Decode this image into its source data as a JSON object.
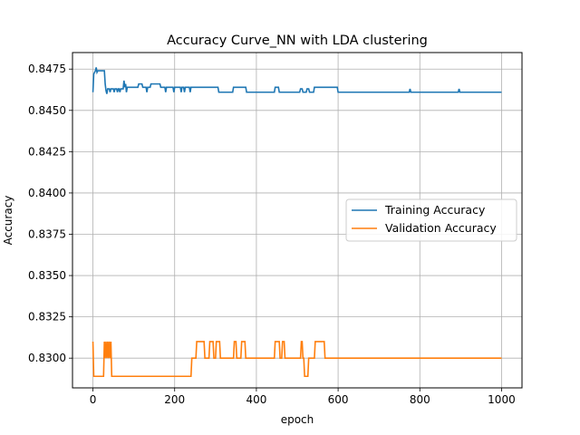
{
  "chart_data": {
    "type": "line",
    "title": "Accuracy Curve_NN with LDA clustering",
    "xlabel": "epoch",
    "ylabel": "Accuracy",
    "xlim": [
      -50,
      1050
    ],
    "ylim": [
      0.8282,
      0.8485
    ],
    "xticks": [
      0,
      200,
      400,
      600,
      800,
      1000
    ],
    "xtick_labels": [
      "0",
      "200",
      "400",
      "600",
      "800",
      "1000"
    ],
    "yticks": [
      0.83,
      0.8325,
      0.835,
      0.8375,
      0.84,
      0.8425,
      0.845,
      0.8475
    ],
    "ytick_labels": [
      "0.8300",
      "0.8325",
      "0.8350",
      "0.8375",
      "0.8400",
      "0.8425",
      "0.8450",
      "0.8475"
    ],
    "grid": true,
    "legend_position": "center-right",
    "series": [
      {
        "name": "Training Accuracy",
        "color": "#1f77b4",
        "points": [
          [
            0,
            0.8461
          ],
          [
            2,
            0.8472
          ],
          [
            6,
            0.8474
          ],
          [
            8,
            0.8476
          ],
          [
            10,
            0.8473
          ],
          [
            12,
            0.8474
          ],
          [
            28,
            0.8474
          ],
          [
            30,
            0.8466
          ],
          [
            32,
            0.8462
          ],
          [
            34,
            0.846
          ],
          [
            36,
            0.8463
          ],
          [
            40,
            0.8463
          ],
          [
            42,
            0.8461
          ],
          [
            44,
            0.8463
          ],
          [
            50,
            0.8463
          ],
          [
            52,
            0.8461
          ],
          [
            54,
            0.8463
          ],
          [
            58,
            0.8463
          ],
          [
            60,
            0.8461
          ],
          [
            62,
            0.8463
          ],
          [
            64,
            0.8463
          ],
          [
            66,
            0.8461
          ],
          [
            68,
            0.8463
          ],
          [
            74,
            0.8463
          ],
          [
            76,
            0.8468
          ],
          [
            78,
            0.8464
          ],
          [
            80,
            0.8466
          ],
          [
            82,
            0.8461
          ],
          [
            84,
            0.8464
          ],
          [
            110,
            0.8464
          ],
          [
            112,
            0.8466
          ],
          [
            120,
            0.8466
          ],
          [
            122,
            0.8464
          ],
          [
            130,
            0.8464
          ],
          [
            132,
            0.8461
          ],
          [
            134,
            0.8464
          ],
          [
            140,
            0.8464
          ],
          [
            142,
            0.8466
          ],
          [
            164,
            0.8466
          ],
          [
            166,
            0.8464
          ],
          [
            176,
            0.8464
          ],
          [
            178,
            0.8461
          ],
          [
            180,
            0.8464
          ],
          [
            196,
            0.8464
          ],
          [
            198,
            0.8461
          ],
          [
            200,
            0.8464
          ],
          [
            214,
            0.8464
          ],
          [
            216,
            0.8461
          ],
          [
            218,
            0.8464
          ],
          [
            222,
            0.8464
          ],
          [
            224,
            0.8461
          ],
          [
            226,
            0.8464
          ],
          [
            236,
            0.8464
          ],
          [
            238,
            0.8461
          ],
          [
            240,
            0.8464
          ],
          [
            306,
            0.8464
          ],
          [
            308,
            0.8461
          ],
          [
            342,
            0.8461
          ],
          [
            344,
            0.8464
          ],
          [
            374,
            0.8464
          ],
          [
            376,
            0.8461
          ],
          [
            444,
            0.8461
          ],
          [
            446,
            0.8464
          ],
          [
            454,
            0.8464
          ],
          [
            456,
            0.8461
          ],
          [
            506,
            0.8461
          ],
          [
            508,
            0.8463
          ],
          [
            512,
            0.8463
          ],
          [
            514,
            0.8461
          ],
          [
            522,
            0.8461
          ],
          [
            524,
            0.8463
          ],
          [
            528,
            0.8463
          ],
          [
            530,
            0.8461
          ],
          [
            540,
            0.8461
          ],
          [
            542,
            0.8464
          ],
          [
            598,
            0.8464
          ],
          [
            600,
            0.8461
          ],
          [
            774,
            0.8461
          ],
          [
            776,
            0.8463
          ],
          [
            778,
            0.8461
          ],
          [
            894,
            0.8461
          ],
          [
            896,
            0.8463
          ],
          [
            898,
            0.8461
          ],
          [
            1000,
            0.8461
          ]
        ]
      },
      {
        "name": "Validation Accuracy",
        "color": "#ff7f0e",
        "points": [
          [
            0,
            0.831
          ],
          [
            2,
            0.8289
          ],
          [
            26,
            0.8289
          ],
          [
            28,
            0.831
          ],
          [
            30,
            0.83
          ],
          [
            32,
            0.831
          ],
          [
            34,
            0.83
          ],
          [
            36,
            0.831
          ],
          [
            38,
            0.83
          ],
          [
            40,
            0.831
          ],
          [
            42,
            0.83
          ],
          [
            44,
            0.831
          ],
          [
            46,
            0.8289
          ],
          [
            240,
            0.8289
          ],
          [
            242,
            0.83
          ],
          [
            252,
            0.83
          ],
          [
            254,
            0.831
          ],
          [
            272,
            0.831
          ],
          [
            274,
            0.83
          ],
          [
            284,
            0.83
          ],
          [
            286,
            0.831
          ],
          [
            294,
            0.831
          ],
          [
            296,
            0.83
          ],
          [
            300,
            0.83
          ],
          [
            302,
            0.831
          ],
          [
            310,
            0.831
          ],
          [
            312,
            0.83
          ],
          [
            344,
            0.83
          ],
          [
            346,
            0.831
          ],
          [
            350,
            0.831
          ],
          [
            352,
            0.83
          ],
          [
            362,
            0.83
          ],
          [
            364,
            0.831
          ],
          [
            372,
            0.831
          ],
          [
            374,
            0.83
          ],
          [
            444,
            0.83
          ],
          [
            446,
            0.831
          ],
          [
            456,
            0.831
          ],
          [
            458,
            0.83
          ],
          [
            462,
            0.83
          ],
          [
            464,
            0.831
          ],
          [
            468,
            0.831
          ],
          [
            470,
            0.83
          ],
          [
            508,
            0.83
          ],
          [
            510,
            0.831
          ],
          [
            512,
            0.831
          ],
          [
            514,
            0.83
          ],
          [
            516,
            0.83
          ],
          [
            518,
            0.8289
          ],
          [
            526,
            0.8289
          ],
          [
            528,
            0.83
          ],
          [
            542,
            0.83
          ],
          [
            544,
            0.831
          ],
          [
            566,
            0.831
          ],
          [
            568,
            0.83
          ],
          [
            1000,
            0.83
          ]
        ]
      }
    ]
  }
}
